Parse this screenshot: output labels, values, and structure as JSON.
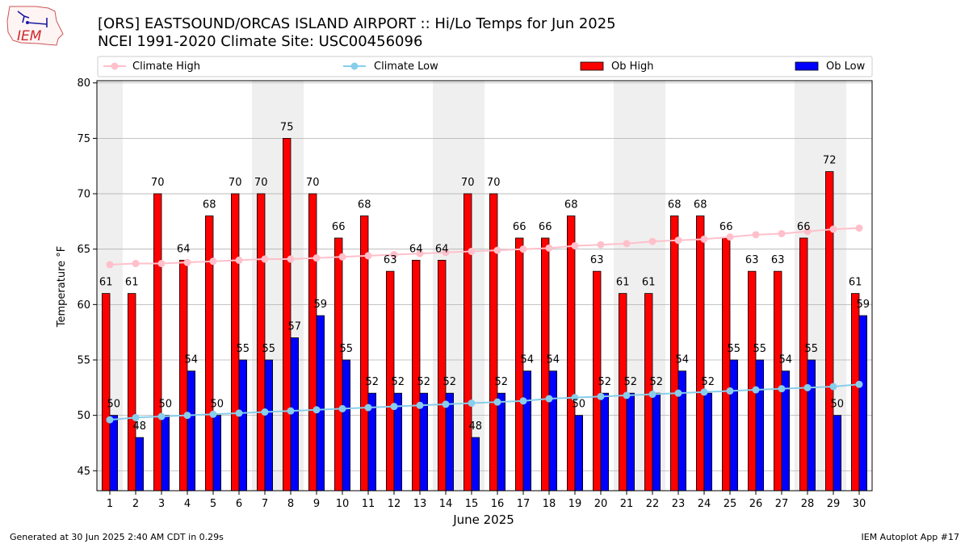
{
  "header": {
    "logo_text": "IEM",
    "title_line1": "[ORS] EASTSOUND/ORCAS ISLAND AIRPORT :: Hi/Lo Temps for Jun 2025",
    "title_line2": "NCEI 1991-2020 Climate Site: USC00456096"
  },
  "footer": {
    "generated": "Generated at 30 Jun 2025 2:40 AM CDT in 0.29s",
    "app": "IEM Autoplot App #17"
  },
  "colors": {
    "ob_high": "#ff0000",
    "ob_low": "#0000ff",
    "climate_high": "#ffc0cb",
    "climate_low": "#87ceeb",
    "weekend_band": "#efefef",
    "grid": "#b0b0b0"
  },
  "chart_data": {
    "type": "bar",
    "xlabel": "June 2025",
    "ylabel": "Temperature °F",
    "ylim": [
      43.2,
      80.2
    ],
    "yticks": [
      45,
      50,
      55,
      60,
      65,
      70,
      75,
      80
    ],
    "grid": true,
    "legend_placement": "top",
    "days": [
      1,
      2,
      3,
      4,
      5,
      6,
      7,
      8,
      9,
      10,
      11,
      12,
      13,
      14,
      15,
      16,
      17,
      18,
      19,
      20,
      21,
      22,
      23,
      24,
      25,
      26,
      27,
      28,
      29,
      30
    ],
    "shaded_days": [
      1,
      7,
      8,
      14,
      15,
      21,
      22,
      28,
      29
    ],
    "series": [
      {
        "name": "Climate High",
        "kind": "line",
        "values": [
          63.6,
          63.7,
          63.7,
          63.8,
          63.9,
          64.0,
          64.1,
          64.1,
          64.2,
          64.3,
          64.4,
          64.5,
          64.6,
          64.7,
          64.8,
          64.9,
          65.0,
          65.1,
          65.3,
          65.4,
          65.5,
          65.7,
          65.8,
          65.9,
          66.1,
          66.3,
          66.4,
          66.6,
          66.8,
          66.9
        ]
      },
      {
        "name": "Climate Low",
        "kind": "line",
        "values": [
          49.6,
          49.8,
          49.9,
          50.0,
          50.1,
          50.2,
          50.3,
          50.4,
          50.5,
          50.6,
          50.7,
          50.8,
          50.9,
          51.0,
          51.1,
          51.2,
          51.3,
          51.5,
          51.6,
          51.7,
          51.8,
          51.9,
          52.0,
          52.1,
          52.2,
          52.3,
          52.4,
          52.5,
          52.6,
          52.8
        ]
      },
      {
        "name": "Ob High",
        "kind": "bar",
        "values": [
          61,
          61,
          70,
          64,
          68,
          70,
          70,
          75,
          70,
          66,
          68,
          63,
          64,
          64,
          70,
          70,
          66,
          66,
          68,
          63,
          61,
          61,
          68,
          68,
          66,
          63,
          63,
          66,
          72,
          61
        ]
      },
      {
        "name": "Ob Low",
        "kind": "bar",
        "values": [
          50,
          48,
          50,
          54,
          50,
          55,
          55,
          57,
          59,
          55,
          52,
          52,
          52,
          52,
          48,
          52,
          54,
          54,
          50,
          52,
          52,
          52,
          54,
          52,
          55,
          55,
          54,
          55,
          50,
          59
        ]
      }
    ]
  }
}
